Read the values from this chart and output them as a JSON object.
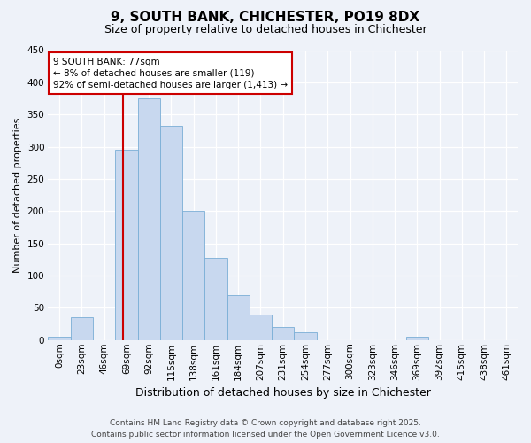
{
  "title": "9, SOUTH BANK, CHICHESTER, PO19 8DX",
  "subtitle": "Size of property relative to detached houses in Chichester",
  "xlabel": "Distribution of detached houses by size in Chichester",
  "ylabel": "Number of detached properties",
  "bar_labels": [
    "0sqm",
    "23sqm",
    "46sqm",
    "69sqm",
    "92sqm",
    "115sqm",
    "138sqm",
    "161sqm",
    "184sqm",
    "207sqm",
    "231sqm",
    "254sqm",
    "277sqm",
    "300sqm",
    "323sqm",
    "346sqm",
    "369sqm",
    "392sqm",
    "415sqm",
    "438sqm",
    "461sqm"
  ],
  "bar_values": [
    5,
    35,
    0,
    295,
    375,
    333,
    200,
    127,
    70,
    40,
    20,
    12,
    0,
    0,
    0,
    0,
    5,
    0,
    0,
    0,
    0
  ],
  "bar_color": "#c8d8ef",
  "bar_edge_color": "#7aaed6",
  "vline_x": 3.35,
  "vline_color": "#cc0000",
  "ylim": [
    0,
    450
  ],
  "yticks": [
    0,
    50,
    100,
    150,
    200,
    250,
    300,
    350,
    400,
    450
  ],
  "annotation_title": "9 SOUTH BANK: 77sqm",
  "annotation_line1": "← 8% of detached houses are smaller (119)",
  "annotation_line2": "92% of semi-detached houses are larger (1,413) →",
  "annotation_box_color": "#ffffff",
  "annotation_box_edge": "#cc0000",
  "footer_line1": "Contains HM Land Registry data © Crown copyright and database right 2025.",
  "footer_line2": "Contains public sector information licensed under the Open Government Licence v3.0.",
  "bg_color": "#eef2f9",
  "grid_color": "#ffffff",
  "title_fontsize": 11,
  "subtitle_fontsize": 9,
  "ylabel_fontsize": 8,
  "xlabel_fontsize": 9,
  "tick_fontsize": 7.5,
  "annotation_fontsize": 7.5,
  "footer_fontsize": 6.5
}
